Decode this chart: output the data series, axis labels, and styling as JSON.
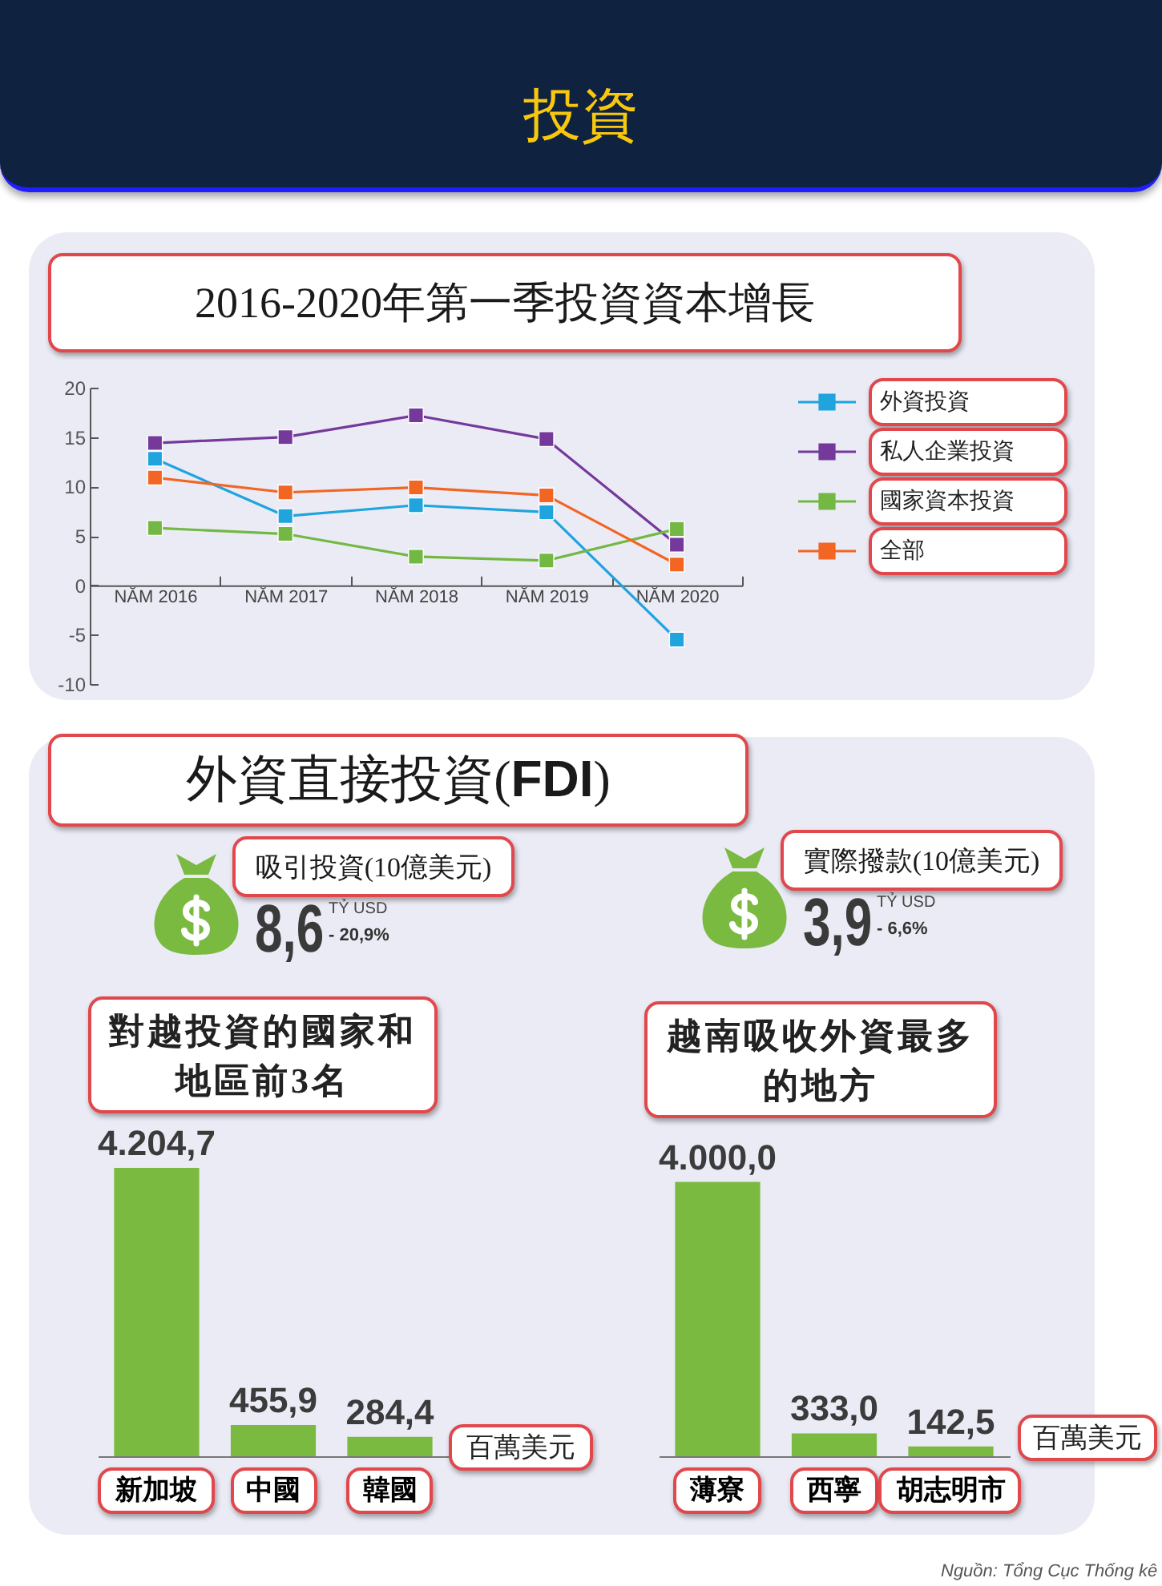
{
  "chart_data": [
    {
      "type": "line",
      "title": "投資",
      "subtitle": "2016-2020年第一季投資資本增長",
      "categories": [
        "NĂM 2016",
        "NĂM 2017",
        "NĂM 2018",
        "NĂM 2019",
        "NĂM 2020"
      ],
      "series": [
        {
          "name": "外資投資",
          "color": "#1fa4dd",
          "values": [
            12.8,
            7.0,
            8.1,
            7.4,
            -5.5
          ]
        },
        {
          "name": "私人企業投資",
          "color": "#74399a",
          "values": [
            14.4,
            15.0,
            17.2,
            14.8,
            4.1
          ]
        },
        {
          "name": "國家資本投資",
          "color": "#73b843",
          "values": [
            5.8,
            5.2,
            2.9,
            2.5,
            5.7
          ]
        },
        {
          "name": "全部",
          "color": "#f26522",
          "values": [
            10.9,
            9.4,
            9.9,
            9.1,
            2.1
          ]
        }
      ],
      "ylim": [
        -10,
        20
      ],
      "yticks": [
        -10,
        -5,
        0,
        5,
        10,
        15,
        20
      ],
      "marker": "square",
      "legend": "right"
    },
    {
      "type": "other",
      "title": "外資直接投資(FDI)",
      "annotations": [
        "吸引投資(10億美元)",
        "8,6",
        "TỶ USD",
        "- 20,9%",
        "實際撥款(10億美元)",
        "3,9",
        "TỶ USD",
        "- 6,6%"
      ]
    },
    {
      "type": "bar",
      "title": "對越投資的國家和地區前3名",
      "categories": [
        "新加坡",
        "中國",
        "韓國"
      ],
      "values": [
        4204.7,
        455.9,
        284.4
      ],
      "value_labels": [
        "4.204,7",
        "455,9",
        "284,4"
      ],
      "color": "#7aba41",
      "annotations": [
        "百萬美元"
      ]
    },
    {
      "type": "bar",
      "title": "越南吸收外資最多的地方",
      "categories": [
        "薄寮",
        "西寧",
        "胡志明市"
      ],
      "values": [
        4000.0,
        333.0,
        142.5
      ],
      "value_labels": [
        "4.000,0",
        "333,0",
        "142,5"
      ],
      "color": "#7aba41",
      "annotations": [
        "百萬美元",
        "Nguồn: Tổng Cục Thống kê"
      ]
    }
  ]
}
